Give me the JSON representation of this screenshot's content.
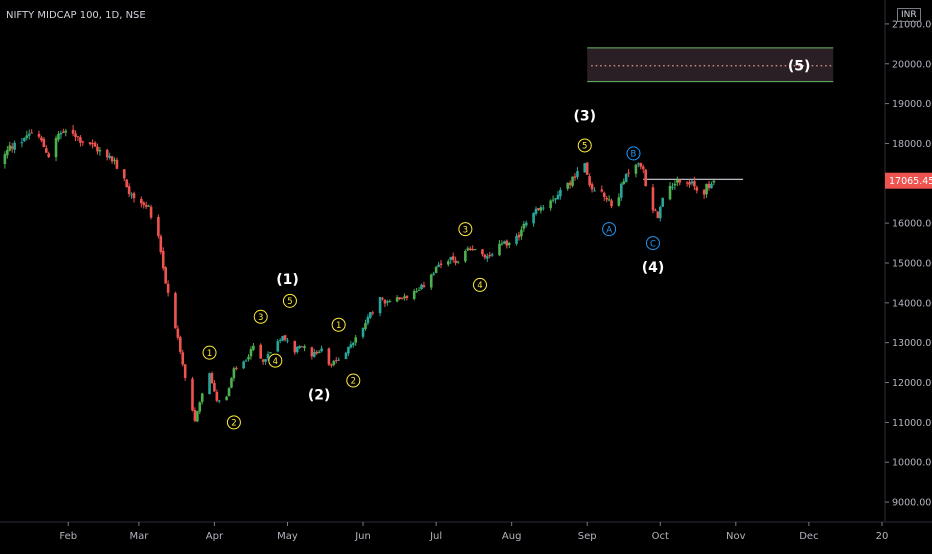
{
  "title": "NIFTY MIDCAP 100, 1D, NSE",
  "currency": "INR",
  "colors": {
    "background": "#000000",
    "up": "#26a69a",
    "up_bright": "#4caf50",
    "down": "#ef5350",
    "label_yellow": "#ffeb3b",
    "label_blue": "#2196f3",
    "label_white": "#ffffff",
    "axis_text": "#b2b5be",
    "price_tag": "#ef5350",
    "box_border": "#66bb6a",
    "box_fill": "#2a1f24",
    "box_dots": "#ef9a9a"
  },
  "chart_data": {
    "type": "candlestick",
    "title": "NIFTY MIDCAP 100, 1D, NSE",
    "y_axis": {
      "side": "right",
      "ylim": [
        8500,
        21600
      ],
      "ticks": [
        9000,
        10000,
        11000,
        12000,
        13000,
        14000,
        15000,
        16000,
        17000,
        18000,
        19000,
        20000,
        21000
      ],
      "tick_labels": [
        "9000.00",
        "10000.00",
        "11000.00",
        "12000.00",
        "13000.00",
        "14000.00",
        "15000.00",
        "16000.00",
        "17000.00",
        "18000.00",
        "19000.00",
        "20000.00",
        "21000.00"
      ]
    },
    "x_axis": {
      "range": [
        "2020-01-04",
        "2020-12-31"
      ],
      "ticks": [
        {
          "date": "2020-02-01",
          "label": "Feb"
        },
        {
          "date": "2020-03-01",
          "label": "Mar"
        },
        {
          "date": "2020-04-01",
          "label": "Apr"
        },
        {
          "date": "2020-05-01",
          "label": "May"
        },
        {
          "date": "2020-06-01",
          "label": "Jun"
        },
        {
          "date": "2020-07-01",
          "label": "Jul"
        },
        {
          "date": "2020-08-01",
          "label": "Aug"
        },
        {
          "date": "2020-09-01",
          "label": "Sep"
        },
        {
          "date": "2020-10-01",
          "label": "Oct"
        },
        {
          "date": "2020-11-01",
          "label": "Nov"
        },
        {
          "date": "2020-12-01",
          "label": "Dec"
        },
        {
          "date": "2020-12-31",
          "label": "20"
        }
      ]
    },
    "last_price": 17065.45,
    "last_price_label": "17065.45",
    "price_path": [
      [
        "2020-01-04",
        17500
      ],
      [
        "2020-01-08",
        17900
      ],
      [
        "2020-01-12",
        18000
      ],
      [
        "2020-01-16",
        18300
      ],
      [
        "2020-01-20",
        18150
      ],
      [
        "2020-01-24",
        17700
      ],
      [
        "2020-01-28",
        18200
      ],
      [
        "2020-02-02",
        18350
      ],
      [
        "2020-02-06",
        18100
      ],
      [
        "2020-02-10",
        18000
      ],
      [
        "2020-02-14",
        17800
      ],
      [
        "2020-02-18",
        17700
      ],
      [
        "2020-02-22",
        17300
      ],
      [
        "2020-02-26",
        16800
      ],
      [
        "2020-03-01",
        16600
      ],
      [
        "2020-03-05",
        16400
      ],
      [
        "2020-03-09",
        15700
      ],
      [
        "2020-03-12",
        14500
      ],
      [
        "2020-03-15",
        13800
      ],
      [
        "2020-03-18",
        12700
      ],
      [
        "2020-03-21",
        11800
      ],
      [
        "2020-03-24",
        11000
      ],
      [
        "2020-03-27",
        11700
      ],
      [
        "2020-03-30",
        12200
      ],
      [
        "2020-04-02",
        11600
      ],
      [
        "2020-04-05",
        11400
      ],
      [
        "2020-04-09",
        12300
      ],
      [
        "2020-04-13",
        12500
      ],
      [
        "2020-04-17",
        12900
      ],
      [
        "2020-04-21",
        12500
      ],
      [
        "2020-04-25",
        12900
      ],
      [
        "2020-04-29",
        13200
      ],
      [
        "2020-05-03",
        12800
      ],
      [
        "2020-05-07",
        12900
      ],
      [
        "2020-05-11",
        12700
      ],
      [
        "2020-05-15",
        12800
      ],
      [
        "2020-05-19",
        12400
      ],
      [
        "2020-05-23",
        12700
      ],
      [
        "2020-05-27",
        12900
      ],
      [
        "2020-05-31",
        13300
      ],
      [
        "2020-06-04",
        13700
      ],
      [
        "2020-06-08",
        14100
      ],
      [
        "2020-06-12",
        14000
      ],
      [
        "2020-06-16",
        14100
      ],
      [
        "2020-06-20",
        14200
      ],
      [
        "2020-06-24",
        14300
      ],
      [
        "2020-06-28",
        14600
      ],
      [
        "2020-07-02",
        14900
      ],
      [
        "2020-07-06",
        15100
      ],
      [
        "2020-07-10",
        15000
      ],
      [
        "2020-07-14",
        15300
      ],
      [
        "2020-07-18",
        15300
      ],
      [
        "2020-07-22",
        15100
      ],
      [
        "2020-07-26",
        15400
      ],
      [
        "2020-07-30",
        15500
      ],
      [
        "2020-08-03",
        15600
      ],
      [
        "2020-08-07",
        16100
      ],
      [
        "2020-08-11",
        16300
      ],
      [
        "2020-08-15",
        16500
      ],
      [
        "2020-08-19",
        16700
      ],
      [
        "2020-08-23",
        16900
      ],
      [
        "2020-08-27",
        17200
      ],
      [
        "2020-08-31",
        17500
      ],
      [
        "2020-09-03",
        16800
      ],
      [
        "2020-09-06",
        17000
      ],
      [
        "2020-09-09",
        16600
      ],
      [
        "2020-09-12",
        16400
      ],
      [
        "2020-09-15",
        16900
      ],
      [
        "2020-09-18",
        17300
      ],
      [
        "2020-09-21",
        17500
      ],
      [
        "2020-09-24",
        17300
      ],
      [
        "2020-09-27",
        16300
      ],
      [
        "2020-09-30",
        16200
      ],
      [
        "2020-10-03",
        16800
      ],
      [
        "2020-10-06",
        17000
      ],
      [
        "2020-10-09",
        17100
      ],
      [
        "2020-10-12",
        17100
      ],
      [
        "2020-10-15",
        16900
      ],
      [
        "2020-10-18",
        16700
      ],
      [
        "2020-10-20",
        16900
      ],
      [
        "2020-10-23",
        17065
      ]
    ],
    "resistance_line": {
      "price": 17100,
      "start": "2020-09-24",
      "end": "2020-11-04"
    },
    "target_box": {
      "top": 20400,
      "bottom": 19550,
      "mid": 19950,
      "start": "2020-09-01",
      "end": "2020-12-11"
    },
    "annotations": [
      {
        "label": "1",
        "date": "2020-03-30",
        "price": 12750,
        "style": "circle",
        "color": "yellow"
      },
      {
        "label": "2",
        "date": "2020-04-09",
        "price": 11000,
        "style": "circle",
        "color": "yellow"
      },
      {
        "label": "3",
        "date": "2020-04-20",
        "price": 13650,
        "style": "circle",
        "color": "yellow"
      },
      {
        "label": "4",
        "date": "2020-04-26",
        "price": 12550,
        "style": "circle",
        "color": "yellow"
      },
      {
        "label": "5",
        "date": "2020-05-02",
        "price": 14050,
        "style": "circle",
        "color": "yellow"
      },
      {
        "label": "(1)",
        "date": "2020-05-01",
        "price": 14600,
        "style": "plain",
        "color": "white"
      },
      {
        "label": "1",
        "date": "2020-05-22",
        "price": 13450,
        "style": "circle",
        "color": "yellow"
      },
      {
        "label": "2",
        "date": "2020-05-28",
        "price": 12050,
        "style": "circle",
        "color": "yellow"
      },
      {
        "label": "(2)",
        "date": "2020-05-14",
        "price": 11700,
        "style": "plain",
        "color": "white"
      },
      {
        "label": "3",
        "date": "2020-07-13",
        "price": 15850,
        "style": "circle",
        "color": "yellow"
      },
      {
        "label": "4",
        "date": "2020-07-19",
        "price": 14450,
        "style": "circle",
        "color": "yellow"
      },
      {
        "label": "(3)",
        "date": "2020-08-31",
        "price": 18700,
        "style": "plain",
        "color": "white"
      },
      {
        "label": "5",
        "date": "2020-08-31",
        "price": 17950,
        "style": "circle",
        "color": "yellow"
      },
      {
        "label": "A",
        "date": "2020-09-10",
        "price": 15850,
        "style": "circle",
        "color": "blue"
      },
      {
        "label": "B",
        "date": "2020-09-20",
        "price": 17750,
        "style": "circle",
        "color": "blue"
      },
      {
        "label": "C",
        "date": "2020-09-28",
        "price": 15500,
        "style": "circle",
        "color": "blue"
      },
      {
        "label": "(4)",
        "date": "2020-09-28",
        "price": 14900,
        "style": "plain",
        "color": "white"
      },
      {
        "label": "(5)",
        "date": "2020-11-27",
        "price": 19950,
        "style": "plain",
        "color": "white"
      }
    ]
  }
}
